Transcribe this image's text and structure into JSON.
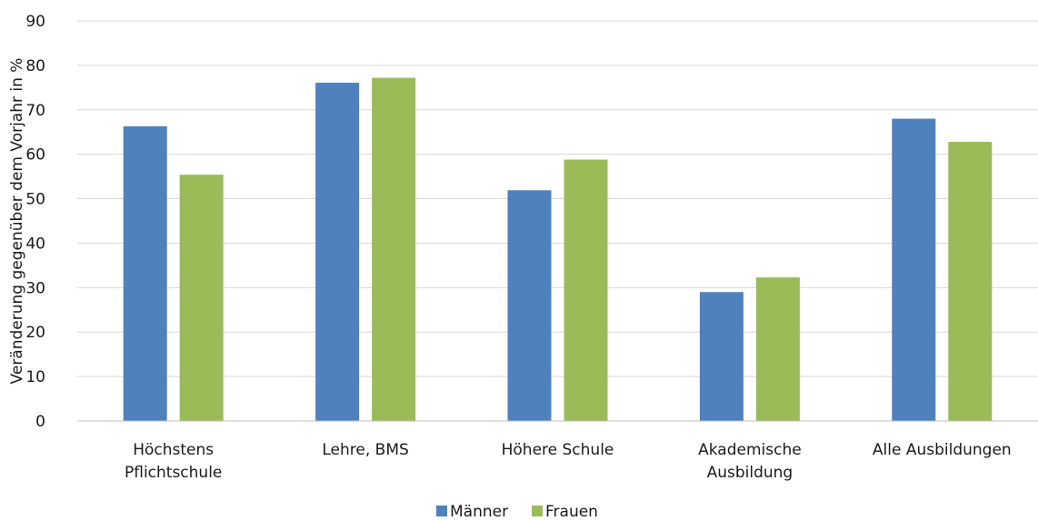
{
  "chart_data": {
    "type": "bar",
    "title": "",
    "xlabel": "",
    "ylabel": "Veränderung gegenüber dem Vorjahr in %",
    "ylim": [
      0,
      90
    ],
    "yticks": [
      0,
      10,
      20,
      30,
      40,
      50,
      60,
      70,
      80,
      90
    ],
    "grid": true,
    "legend_position": "bottom",
    "categories": [
      [
        "Höchstens",
        "Pflichtschule"
      ],
      [
        "Lehre, BMS"
      ],
      [
        "Höhere Schule"
      ],
      [
        "Akademische",
        "Ausbildung"
      ],
      [
        "Alle Ausbildungen"
      ]
    ],
    "series": [
      {
        "name": "Männer",
        "color": "#4f81bd",
        "values": [
          66.3,
          76.1,
          51.9,
          29.0,
          68.0
        ]
      },
      {
        "name": "Frauen",
        "color": "#9bbb59",
        "values": [
          55.4,
          77.2,
          58.8,
          32.3,
          62.8
        ]
      }
    ]
  }
}
